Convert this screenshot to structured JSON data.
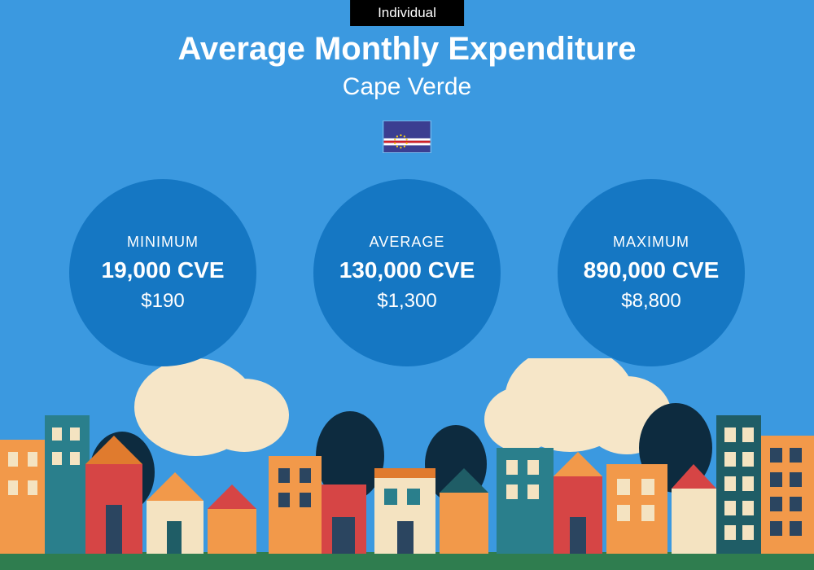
{
  "badge": {
    "text": "Individual",
    "bg": "#000000",
    "color": "#ffffff"
  },
  "title": {
    "text": "Average Monthly Expenditure",
    "color": "#ffffff",
    "fontsize": 40,
    "weight": 700
  },
  "subtitle": {
    "text": "Cape Verde",
    "color": "#ffffff",
    "fontsize": 30,
    "weight": 300
  },
  "background_color": "#3b99e0",
  "flag": {
    "base": "#3b3e91",
    "stripe_white": "#ffffff",
    "stripe_red": "#cf2027",
    "stars": "#f7d116"
  },
  "circles": {
    "color": "#1577c3",
    "text_color": "#ffffff",
    "items": [
      {
        "label": "MINIMUM",
        "value": "19,000 CVE",
        "usd": "$190"
      },
      {
        "label": "AVERAGE",
        "value": "130,000 CVE",
        "usd": "$1,300"
      },
      {
        "label": "MAXIMUM",
        "value": "890,000 CVE",
        "usd": "$8,800"
      }
    ]
  },
  "city_palette": {
    "cloud": "#f6e6c8",
    "tree_dark": "#0d2b3f",
    "orange": "#f2994a",
    "orange_dark": "#e07b2e",
    "red": "#d64545",
    "teal": "#2a7f8c",
    "teal_dark": "#1f5d66",
    "navy": "#2b4560",
    "cream": "#f4e3c1",
    "green_ground": "#2f7d4f",
    "window": "#1a3a4a"
  }
}
